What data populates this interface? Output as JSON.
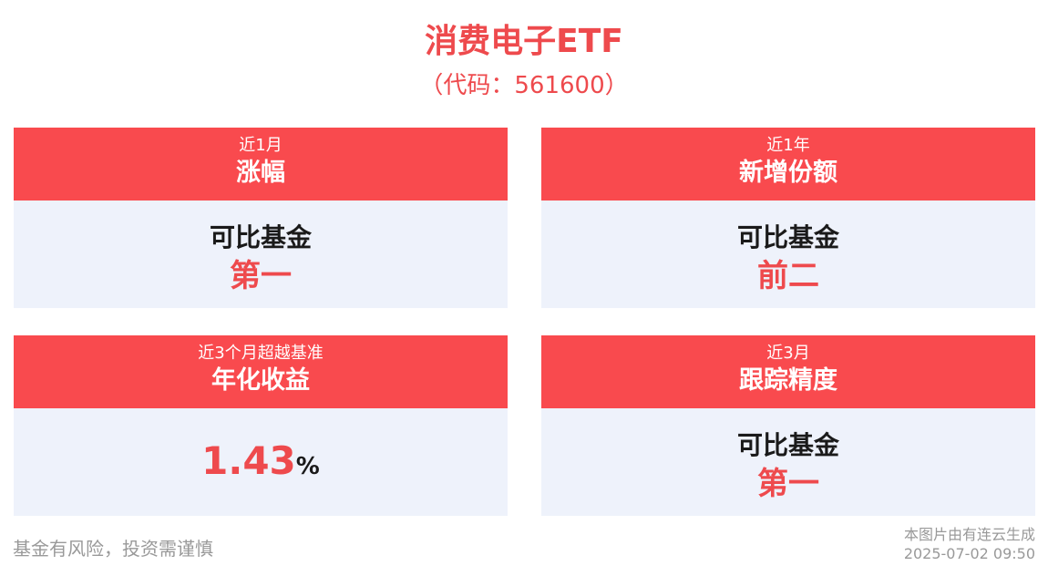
{
  "header": {
    "title": "消费电子ETF",
    "code": "（代码：561600）"
  },
  "cards": [
    {
      "sub": "近1月",
      "main": "涨幅",
      "line1": "可比基金",
      "line2": "第一"
    },
    {
      "sub": "近1年",
      "main": "新增份额",
      "line1": "可比基金",
      "line2": "前二"
    },
    {
      "sub": "近3个月超越基准",
      "main": "年化收益",
      "value": "1.43",
      "unit": "%"
    },
    {
      "sub": "近3月",
      "main": "跟踪精度",
      "line1": "可比基金",
      "line2": "第一"
    }
  ],
  "footer": {
    "risk": "基金有风险，投资需谨慎",
    "source": "本图片由有连云生成",
    "timestamp": "2025-07-02 09:50"
  },
  "colors": {
    "accent": "#f94a4e",
    "title_red": "#ee4a4d",
    "panel_bg": "#eef2fb"
  }
}
